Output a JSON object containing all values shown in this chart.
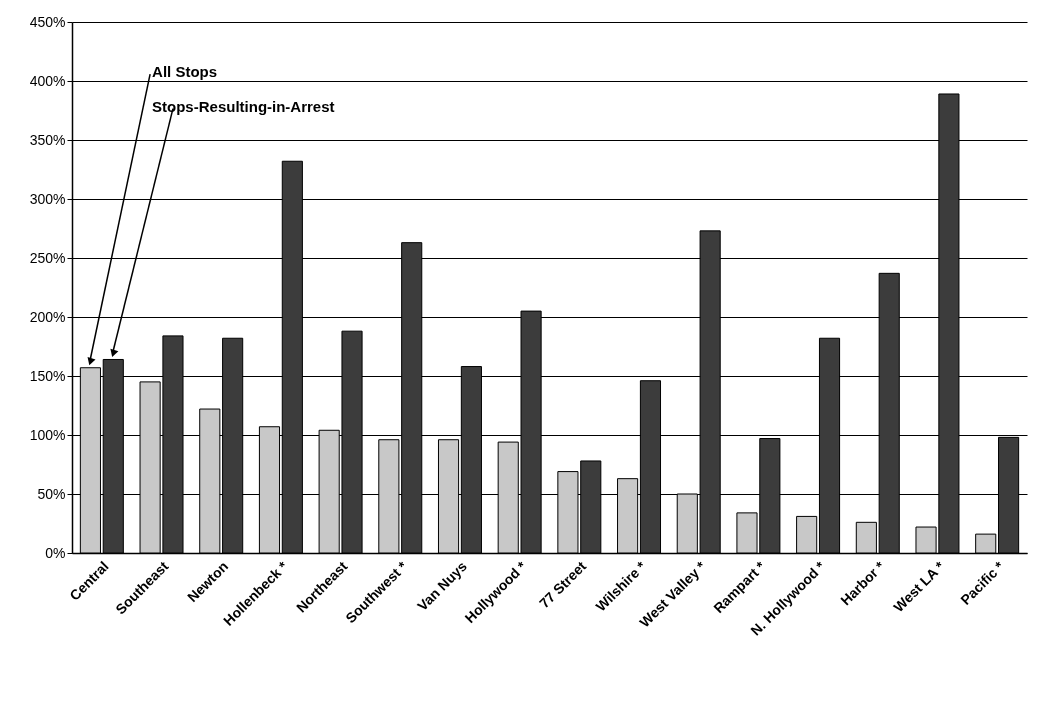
{
  "chart_data": {
    "type": "bar",
    "categories": [
      "Central",
      "Southeast",
      "Newton",
      "Hollenbeck *",
      "Northeast",
      "Southwest *",
      "Van Nuys",
      "Hollywood *",
      "77 Street",
      "Wilshire *",
      "West Valley *",
      "Rampart *",
      "N. Hollywood *",
      "Harbor *",
      "West LA *",
      "Pacific *"
    ],
    "series": [
      {
        "name": "All Stops",
        "color": "#c8c8c8",
        "values": [
          157,
          145,
          122,
          107,
          104,
          96,
          96,
          94,
          69,
          63,
          50,
          34,
          31,
          26,
          22,
          16
        ]
      },
      {
        "name": "Stops-Resulting-in-Arrest",
        "color": "#3c3c3c",
        "values": [
          164,
          184,
          182,
          332,
          188,
          263,
          158,
          205,
          78,
          146,
          273,
          97,
          182,
          237,
          389,
          98
        ]
      }
    ],
    "ylim": [
      0,
      450
    ],
    "yticks": [
      {
        "value": 0,
        "label": "0%"
      },
      {
        "value": 50,
        "label": "50%"
      },
      {
        "value": 100,
        "label": "100%"
      },
      {
        "value": 150,
        "label": "150%"
      },
      {
        "value": 200,
        "label": "200%"
      },
      {
        "value": 250,
        "label": "250%"
      },
      {
        "value": 300,
        "label": "300%"
      },
      {
        "value": 350,
        "label": "350%"
      },
      {
        "value": 400,
        "label": "400%"
      },
      {
        "value": 450,
        "label": "450%"
      }
    ],
    "grid": "y",
    "legend": false
  }
}
